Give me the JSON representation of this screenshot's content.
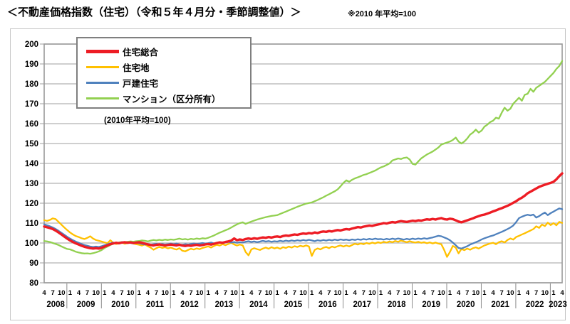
{
  "header": {
    "title": "＜不動産価格指数（住宅）（令和５年４月分・季節調整値）＞",
    "note": "※2010 年平均=100"
  },
  "legend": {
    "note": "(2010年平均=100)",
    "items": [
      {
        "label": "住宅総合",
        "color": "#ed1c24",
        "thick": true
      },
      {
        "label": "住宅地",
        "color": "#ffc000",
        "thick": false
      },
      {
        "label": "戸建住宅",
        "color": "#4f81bd",
        "thick": false
      },
      {
        "label": "マンション（区分所有）",
        "color": "#92d050",
        "thick": false
      }
    ]
  },
  "chart_data": {
    "type": "line",
    "title": "不動産価格指数（住宅）",
    "x_start": "2008-04",
    "x_end": "2023-04",
    "x_frequency": "monthly",
    "x_tick_months": [
      1,
      4,
      7,
      10
    ],
    "years": [
      2008,
      2009,
      2010,
      2011,
      2012,
      2013,
      2014,
      2015,
      2016,
      2017,
      2018,
      2019,
      2020,
      2021,
      2022,
      2023
    ],
    "ylim": [
      80,
      200
    ],
    "y_ticks": [
      80,
      90,
      100,
      110,
      120,
      130,
      140,
      150,
      160,
      170,
      180,
      190,
      200
    ],
    "grid": "horizontal",
    "legend_position": "top-left-inside",
    "grid_color": "#b2b2b2",
    "border_color": "#9a9a9a",
    "draw_order": [
      3,
      1,
      2,
      0
    ],
    "series": [
      {
        "name": "住宅総合",
        "color": "#ed1c24",
        "line_width": 3.4,
        "values": [
          108.3,
          107.9,
          107.5,
          107.0,
          106.2,
          105.3,
          104.3,
          103.2,
          102.2,
          101.3,
          100.5,
          99.8,
          99.2,
          98.6,
          98.1,
          97.7,
          97.4,
          97.2,
          97.4,
          97.2,
          97.6,
          98.2,
          98.8,
          99.4,
          99.8,
          100.1,
          99.9,
          100.2,
          100.4,
          100.1,
          100.3,
          100.0,
          100.2,
          100.4,
          100.1,
          99.7,
          99.3,
          99.0,
          98.8,
          99.1,
          99.3,
          99.0,
          98.8,
          99.0,
          99.2,
          99.0,
          98.8,
          99.1,
          98.7,
          98.5,
          98.8,
          98.6,
          98.9,
          99.1,
          98.8,
          99.0,
          99.3,
          99.5,
          99.2,
          99.6,
          100.0,
          100.3,
          100.1,
          100.5,
          100.8,
          101.2,
          102.3,
          101.4,
          101.8,
          101.5,
          102.0,
          102.3,
          102.0,
          102.4,
          102.1,
          102.5,
          102.8,
          102.6,
          103.0,
          102.7,
          103.1,
          103.3,
          103.0,
          103.5,
          103.8,
          103.6,
          104.0,
          104.3,
          104.1,
          104.5,
          104.8,
          104.6,
          105.0,
          104.8,
          105.3,
          105.0,
          105.5,
          105.8,
          105.6,
          106.0,
          105.8,
          106.2,
          106.5,
          106.3,
          106.7,
          107.0,
          106.8,
          107.3,
          107.6,
          108.0,
          107.8,
          108.2,
          108.5,
          108.8,
          108.6,
          109.0,
          109.3,
          109.6,
          110.0,
          109.8,
          110.2,
          110.5,
          110.3,
          110.7,
          111.0,
          110.8,
          110.6,
          110.9,
          111.2,
          111.0,
          111.4,
          111.2,
          111.6,
          111.9,
          111.7,
          112.1,
          111.8,
          112.2,
          112.5,
          112.0,
          111.8,
          112.2,
          112.0,
          111.4,
          110.8,
          110.4,
          110.9,
          111.4,
          111.9,
          112.4,
          113.0,
          113.5,
          114.0,
          114.3,
          114.8,
          115.3,
          115.9,
          116.4,
          117.0,
          117.5,
          118.1,
          118.7,
          119.4,
          120.2,
          121.0,
          122.0,
          122.8,
          123.8,
          125.0,
          125.8,
          126.6,
          127.4,
          128.2,
          128.8,
          129.3,
          129.8,
          130.2,
          130.8,
          132.0,
          133.6,
          135.0
        ]
      },
      {
        "name": "住宅地",
        "color": "#ffc000",
        "line_width": 2.3,
        "values": [
          111.5,
          111.1,
          111.6,
          112.4,
          112.0,
          110.6,
          109.2,
          107.8,
          106.5,
          105.3,
          104.3,
          103.5,
          103.0,
          102.4,
          102.0,
          102.6,
          103.4,
          102.2,
          101.5,
          101.1,
          100.7,
          100.3,
          99.9,
          101.4,
          100.1,
          99.5,
          99.8,
          100.2,
          99.6,
          100.0,
          100.4,
          99.7,
          99.4,
          99.1,
          98.7,
          99.3,
          98.4,
          97.7,
          96.6,
          97.4,
          98.1,
          97.5,
          97.9,
          97.3,
          97.7,
          97.1,
          96.7,
          97.4,
          96.1,
          95.8,
          96.5,
          97.1,
          96.7,
          97.3,
          96.9,
          97.5,
          97.9,
          98.3,
          97.7,
          98.5,
          99.1,
          98.7,
          99.4,
          98.9,
          99.5,
          100.1,
          99.3,
          98.7,
          99.2,
          98.8,
          95.5,
          93.8,
          96.8,
          97.4,
          96.9,
          96.5,
          97.2,
          97.7,
          97.1,
          97.9,
          97.3,
          97.7,
          97.1,
          97.9,
          97.5,
          98.2,
          97.7,
          98.4,
          98.0,
          98.6,
          98.2,
          98.8,
          98.3,
          93.5,
          96.5,
          97.3,
          96.8,
          97.6,
          98.0,
          97.4,
          98.2,
          97.8,
          98.4,
          98.8,
          98.2,
          98.8,
          98.3,
          99.0,
          99.6,
          99.2,
          99.8,
          99.4,
          100.0,
          99.6,
          100.2,
          99.8,
          100.4,
          100.0,
          100.6,
          100.2,
          100.8,
          100.4,
          101.0,
          100.6,
          101.2,
          100.8,
          100.4,
          100.9,
          100.5,
          100.2,
          100.6,
          100.1,
          100.4,
          99.9,
          100.3,
          99.8,
          100.2,
          99.7,
          99.4,
          96.5,
          93.0,
          95.5,
          98.5,
          97.7,
          94.8,
          97.0,
          96.4,
          97.2,
          96.6,
          97.4,
          97.8,
          97.2,
          98.0,
          98.8,
          99.3,
          99.8,
          100.1,
          99.4,
          100.4,
          100.9,
          100.3,
          101.5,
          102.3,
          101.7,
          103.0,
          103.6,
          104.3,
          104.9,
          105.6,
          106.3,
          107.0,
          108.4,
          107.6,
          109.3,
          108.5,
          110.2,
          109.0,
          110.0,
          108.9,
          110.6,
          110.1
        ]
      },
      {
        "name": "戸建住宅",
        "color": "#4f81bd",
        "line_width": 2.3,
        "values": [
          109.4,
          108.9,
          108.4,
          107.8,
          107.0,
          106.1,
          105.1,
          104.1,
          103.1,
          102.2,
          101.4,
          100.7,
          100.1,
          99.5,
          99.0,
          98.6,
          98.2,
          98.0,
          98.2,
          98.0,
          98.4,
          98.9,
          99.4,
          99.8,
          100.2,
          99.9,
          100.1,
          100.4,
          100.1,
          100.3,
          100.0,
          99.8,
          100.1,
          99.9,
          99.5,
          99.2,
          99.5,
          99.1,
          99.4,
          99.6,
          99.2,
          99.5,
          99.2,
          99.4,
          99.7,
          99.4,
          99.7,
          99.3,
          99.1,
          99.4,
          99.2,
          99.5,
          99.8,
          99.5,
          99.7,
          100.0,
          99.7,
          99.9,
          100.2,
          99.8,
          100.1,
          100.4,
          100.0,
          100.3,
          100.6,
          100.2,
          100.5,
          100.1,
          100.4,
          100.2,
          100.6,
          100.9,
          100.5,
          100.8,
          100.4,
          100.7,
          101.1,
          100.7,
          101.0,
          100.6,
          100.9,
          100.7,
          101.1,
          100.8,
          101.2,
          100.9,
          101.3,
          101.0,
          101.4,
          101.1,
          101.5,
          101.2,
          101.6,
          101.3,
          100.9,
          101.4,
          101.1,
          101.5,
          101.2,
          101.6,
          101.3,
          101.7,
          101.4,
          101.8,
          101.5,
          101.7,
          101.4,
          101.8,
          101.5,
          101.9,
          101.6,
          102.0,
          101.7,
          102.1,
          101.8,
          102.2,
          101.9,
          102.0,
          101.7,
          102.1,
          101.8,
          102.2,
          101.9,
          102.3,
          102.0,
          101.7,
          102.1,
          101.8,
          102.2,
          101.9,
          102.3,
          102.0,
          102.4,
          102.1,
          102.5,
          102.8,
          103.2,
          103.6,
          103.4,
          102.8,
          102.2,
          101.4,
          100.2,
          98.9,
          97.5,
          97.2,
          97.8,
          98.4,
          99.2,
          99.8,
          100.4,
          101.0,
          101.8,
          102.4,
          102.9,
          103.4,
          103.8,
          104.4,
          105.0,
          105.6,
          106.3,
          107.0,
          107.8,
          108.8,
          110.5,
          112.5,
          113.2,
          113.8,
          114.2,
          113.9,
          114.3,
          112.8,
          113.5,
          114.5,
          115.3,
          114.0,
          115.0,
          115.8,
          116.6,
          117.4,
          117.0
        ]
      },
      {
        "name": "マンション（区分所有）",
        "color": "#92d050",
        "line_width": 2.3,
        "values": [
          101.0,
          100.8,
          100.5,
          100.0,
          99.5,
          99.0,
          98.3,
          97.6,
          97.0,
          96.8,
          96.2,
          95.6,
          95.2,
          94.9,
          94.7,
          94.8,
          94.6,
          94.9,
          95.3,
          95.8,
          96.5,
          97.5,
          98.2,
          99.0,
          99.6,
          100.0,
          100.3,
          100.5,
          100.4,
          100.6,
          100.8,
          100.6,
          100.9,
          101.0,
          101.3,
          101.1,
          100.8,
          101.2,
          101.5,
          101.3,
          101.6,
          101.4,
          101.7,
          101.5,
          101.8,
          101.6,
          101.9,
          102.2,
          101.8,
          102.0,
          101.7,
          102.1,
          101.9,
          102.3,
          102.0,
          102.4,
          102.2,
          102.6,
          103.2,
          103.8,
          104.5,
          105.2,
          105.8,
          106.4,
          107.0,
          107.8,
          108.6,
          109.4,
          110.0,
          110.4,
          109.6,
          110.2,
          110.8,
          111.3,
          111.8,
          112.2,
          112.6,
          113.0,
          113.3,
          113.6,
          113.8,
          114.0,
          114.6,
          115.2,
          115.8,
          116.4,
          117.0,
          117.6,
          118.2,
          118.8,
          119.3,
          119.8,
          120.1,
          120.4,
          121.0,
          121.6,
          122.3,
          123.0,
          123.8,
          124.5,
          125.3,
          126.0,
          127.0,
          128.5,
          130.2,
          131.5,
          130.8,
          131.8,
          132.5,
          133.0,
          133.6,
          134.2,
          134.6,
          135.2,
          135.8,
          136.4,
          137.2,
          138.0,
          138.5,
          139.2,
          140.0,
          141.5,
          142.0,
          142.5,
          142.2,
          142.8,
          143.0,
          142.0,
          139.8,
          139.4,
          141.0,
          142.5,
          143.5,
          144.5,
          145.2,
          146.0,
          147.0,
          148.0,
          149.5,
          150.0,
          150.5,
          151.0,
          151.8,
          153.0,
          151.0,
          150.0,
          151.0,
          152.5,
          154.5,
          155.5,
          157.0,
          155.5,
          156.5,
          158.5,
          159.5,
          160.8,
          161.5,
          163.0,
          162.5,
          165.5,
          168.0,
          166.5,
          167.5,
          170.0,
          171.5,
          173.0,
          171.5,
          174.5,
          175.0,
          177.5,
          176.0,
          178.0,
          179.0,
          180.0,
          181.0,
          182.5,
          184.0,
          185.5,
          187.5,
          189.0,
          191.5
        ]
      }
    ]
  }
}
